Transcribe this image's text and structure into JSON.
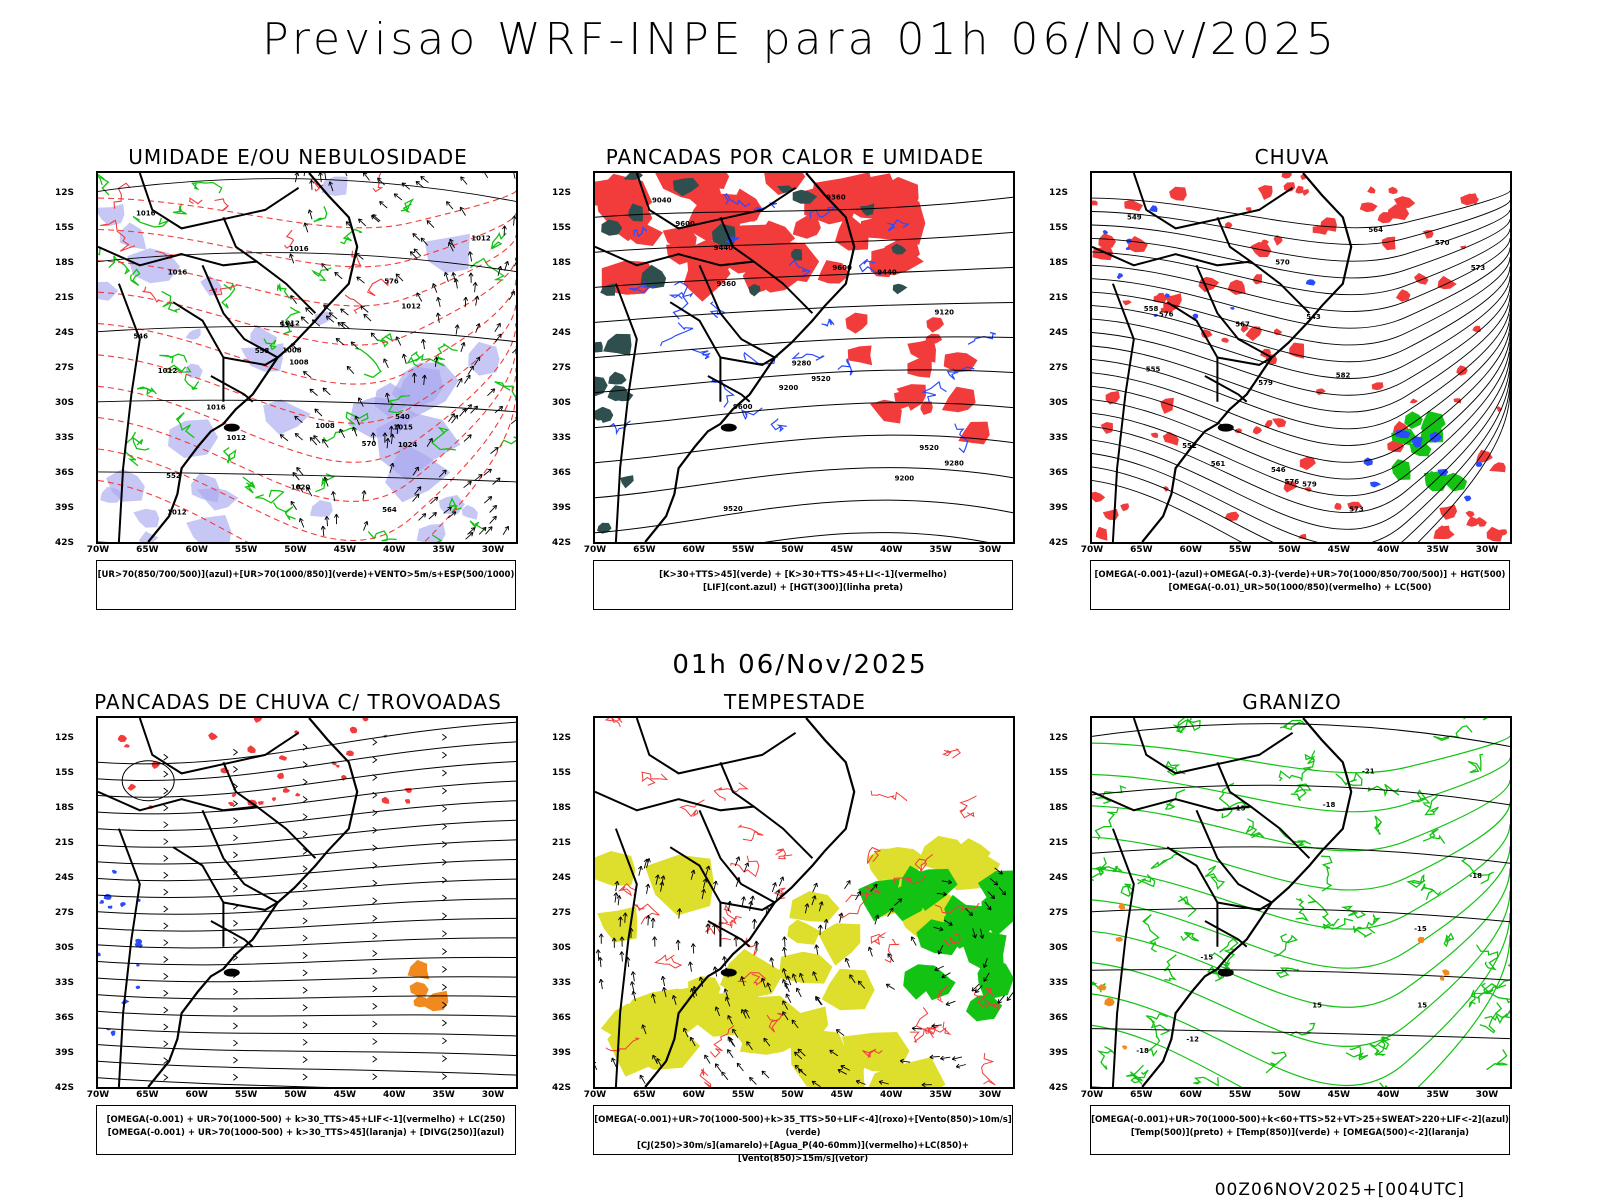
{
  "title": "Previsao WRF-INPE  para 01h 06/Nov/2025",
  "mid_title": "01h 06/Nov/2025",
  "footer": "00Z06NOV2025+[004UTC]",
  "lat_labels": [
    "12S",
    "15S",
    "18S",
    "21S",
    "24S",
    "27S",
    "30S",
    "33S",
    "36S",
    "39S",
    "42S"
  ],
  "lon_labels": [
    "70W",
    "65W",
    "60W",
    "55W",
    "50W",
    "45W",
    "40W",
    "35W",
    "30W"
  ],
  "colors": {
    "red": "#f23c3c",
    "green": "#13c313",
    "blue": "#2b4bff",
    "lavender": "#a9a9f0",
    "yellow": "#dede2c",
    "orange": "#f08a1e",
    "darkteal": "#2f4f4f"
  },
  "panels": [
    {
      "id": "umidade",
      "title": "UMIDADE E/OU NEBULOSIDADE",
      "legend": [
        "[UR>70(850/700/500)](azul)+[UR>70(1000/850)](verde)+VENTO>5m/s+ESP(500/1000)"
      ],
      "labels": [
        "1012",
        "1012",
        "1012",
        "1016",
        "1016",
        "1016",
        "1020",
        "1016",
        "1012",
        "1008",
        "1008",
        "1012",
        "1012",
        "1008",
        "1024",
        "1015",
        "576",
        "570",
        "564",
        "558",
        "552",
        "546",
        "540",
        "534"
      ]
    },
    {
      "id": "pancadas_calor",
      "title": "PANCADAS POR CALOR E UMIDADE",
      "legend": [
        "[K>30+TTS>45](verde) + [K>30+TTS>45+LI<-1](vermelho)",
        "[LIF](cont.azul) + [HGT(300)](linha preta)"
      ],
      "labels": [
        "9600",
        "9520",
        "9600",
        "9520",
        "9440",
        "9360",
        "9280",
        "9200",
        "9600",
        "9520",
        "9440",
        "9360",
        "9280",
        "9200",
        "9120",
        "9040"
      ]
    },
    {
      "id": "chuva",
      "title": "CHUVA",
      "legend": [
        "[OMEGA(-0.001)-(azul)+OMEGA(-0.3)-(verde)+UR>70(1000/850/700/500)] + HGT(500)",
        "[OMEGA(-0.01)_UR>50(1000/850)(vermelho) + LC(500)"
      ],
      "labels": [
        "582",
        "579",
        "576",
        "573",
        "570",
        "567",
        "564",
        "561",
        "558",
        "555",
        "552",
        "549",
        "546",
        "543",
        "579",
        "576",
        "573",
        "570"
      ]
    },
    {
      "id": "trovoadas",
      "title": "PANCADAS DE CHUVA C/ TROVOADAS",
      "legend": [
        "[OMEGA(-0.001) + UR>70(1000-500) + k>30_TTS>45+LIF<-1](vermelho) + LC(250)",
        "[OMEGA(-0.001) + UR>70(1000-500) + k>30_TTS>45](laranja) + [DIVG(250)](azul)"
      ],
      "labels": []
    },
    {
      "id": "tempestade",
      "title": "TEMPESTADE",
      "legend": [
        "[OMEGA(-0.001)+UR>70(1000-500)+k>35_TTS>50+LIF<-4](roxo)+[Vento(850)>10m/s](verde)",
        "[CJ(250)>30m/s](amarelo)+[Agua_P(40-60mm)](vermelho)+LC(850)+[Vento(850)>15m/s](vetor)"
      ],
      "labels": []
    },
    {
      "id": "granizo",
      "title": "GRANIZO",
      "legend": [
        "[OMEGA(-0.001)+UR>70(1000-500)+k<60+TTS>52+VT>25+SWEAT>220+LIF<-2](azul)",
        "[Temp(500)](preto) + [Temp(850)](verde) + [OMEGA(500)<-2](laranja)"
      ],
      "labels": [
        "-12",
        "-15",
        "-18",
        "-21",
        "-15",
        "-18",
        "15",
        "15",
        "-15",
        "-18"
      ]
    }
  ]
}
